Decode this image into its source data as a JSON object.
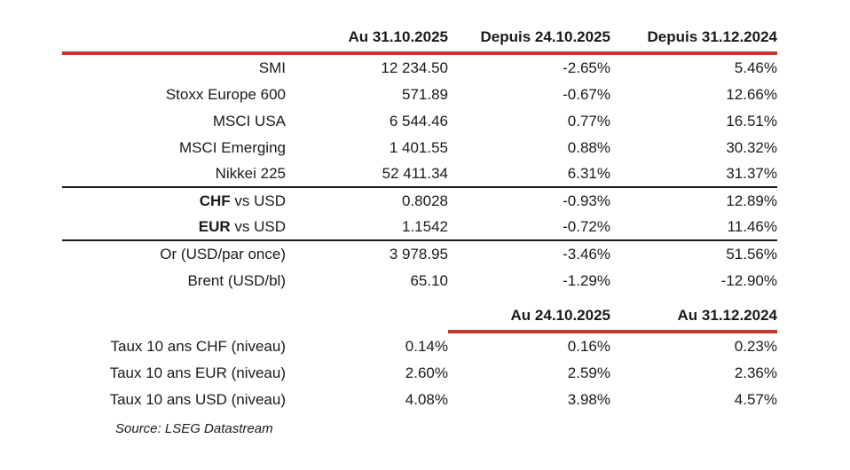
{
  "colors": {
    "accent_red": "#C4382C",
    "text": "#1a1a1a",
    "background": "#ffffff"
  },
  "table1": {
    "headers": [
      "",
      "Au 31.10.2025",
      "Depuis 24.10.2025",
      "Depuis 31.12.2024"
    ],
    "rows": [
      {
        "label_bold": "",
        "label": "SMI",
        "v1": "12 234.50",
        "v2": "-2.65%",
        "v3": "5.46%"
      },
      {
        "label_bold": "",
        "label": "Stoxx Europe 600",
        "v1": "571.89",
        "v2": "-0.67%",
        "v3": "12.66%"
      },
      {
        "label_bold": "",
        "label": "MSCI USA",
        "v1": "6 544.46",
        "v2": "0.77%",
        "v3": "16.51%"
      },
      {
        "label_bold": "",
        "label": "MSCI Emerging",
        "v1": "1 401.55",
        "v2": "0.88%",
        "v3": "30.32%"
      },
      {
        "label_bold": "",
        "label": "Nikkei 225",
        "v1": "52 411.34",
        "v2": "6.31%",
        "v3": "31.37%"
      },
      {
        "label_bold": "CHF",
        "label": " vs USD",
        "v1": "0.8028",
        "v2": "-0.93%",
        "v3": "12.89%"
      },
      {
        "label_bold": "EUR",
        "label": " vs USD",
        "v1": "1.1542",
        "v2": "-0.72%",
        "v3": "11.46%"
      },
      {
        "label_bold": "",
        "label": "Or (USD/par once)",
        "v1": "3 978.95",
        "v2": "-3.46%",
        "v3": "51.56%"
      },
      {
        "label_bold": "",
        "label": "Brent (USD/bl)",
        "v1": "65.10",
        "v2": "-1.29%",
        "v3": "-12.90%"
      }
    ]
  },
  "table2": {
    "headers": [
      "Au 24.10.2025",
      "Au 31.12.2024"
    ],
    "rows": [
      {
        "label": "Taux 10 ans CHF (niveau)",
        "v1": "0.14%",
        "v2": "0.16%",
        "v3": "0.23%"
      },
      {
        "label": "Taux 10 ans EUR (niveau)",
        "v1": "2.60%",
        "v2": "2.59%",
        "v3": "2.36%"
      },
      {
        "label": "Taux 10 ans USD (niveau)",
        "v1": "4.08%",
        "v2": "3.98%",
        "v3": "4.57%"
      }
    ]
  },
  "source_note": "Source: LSEG Datastream"
}
